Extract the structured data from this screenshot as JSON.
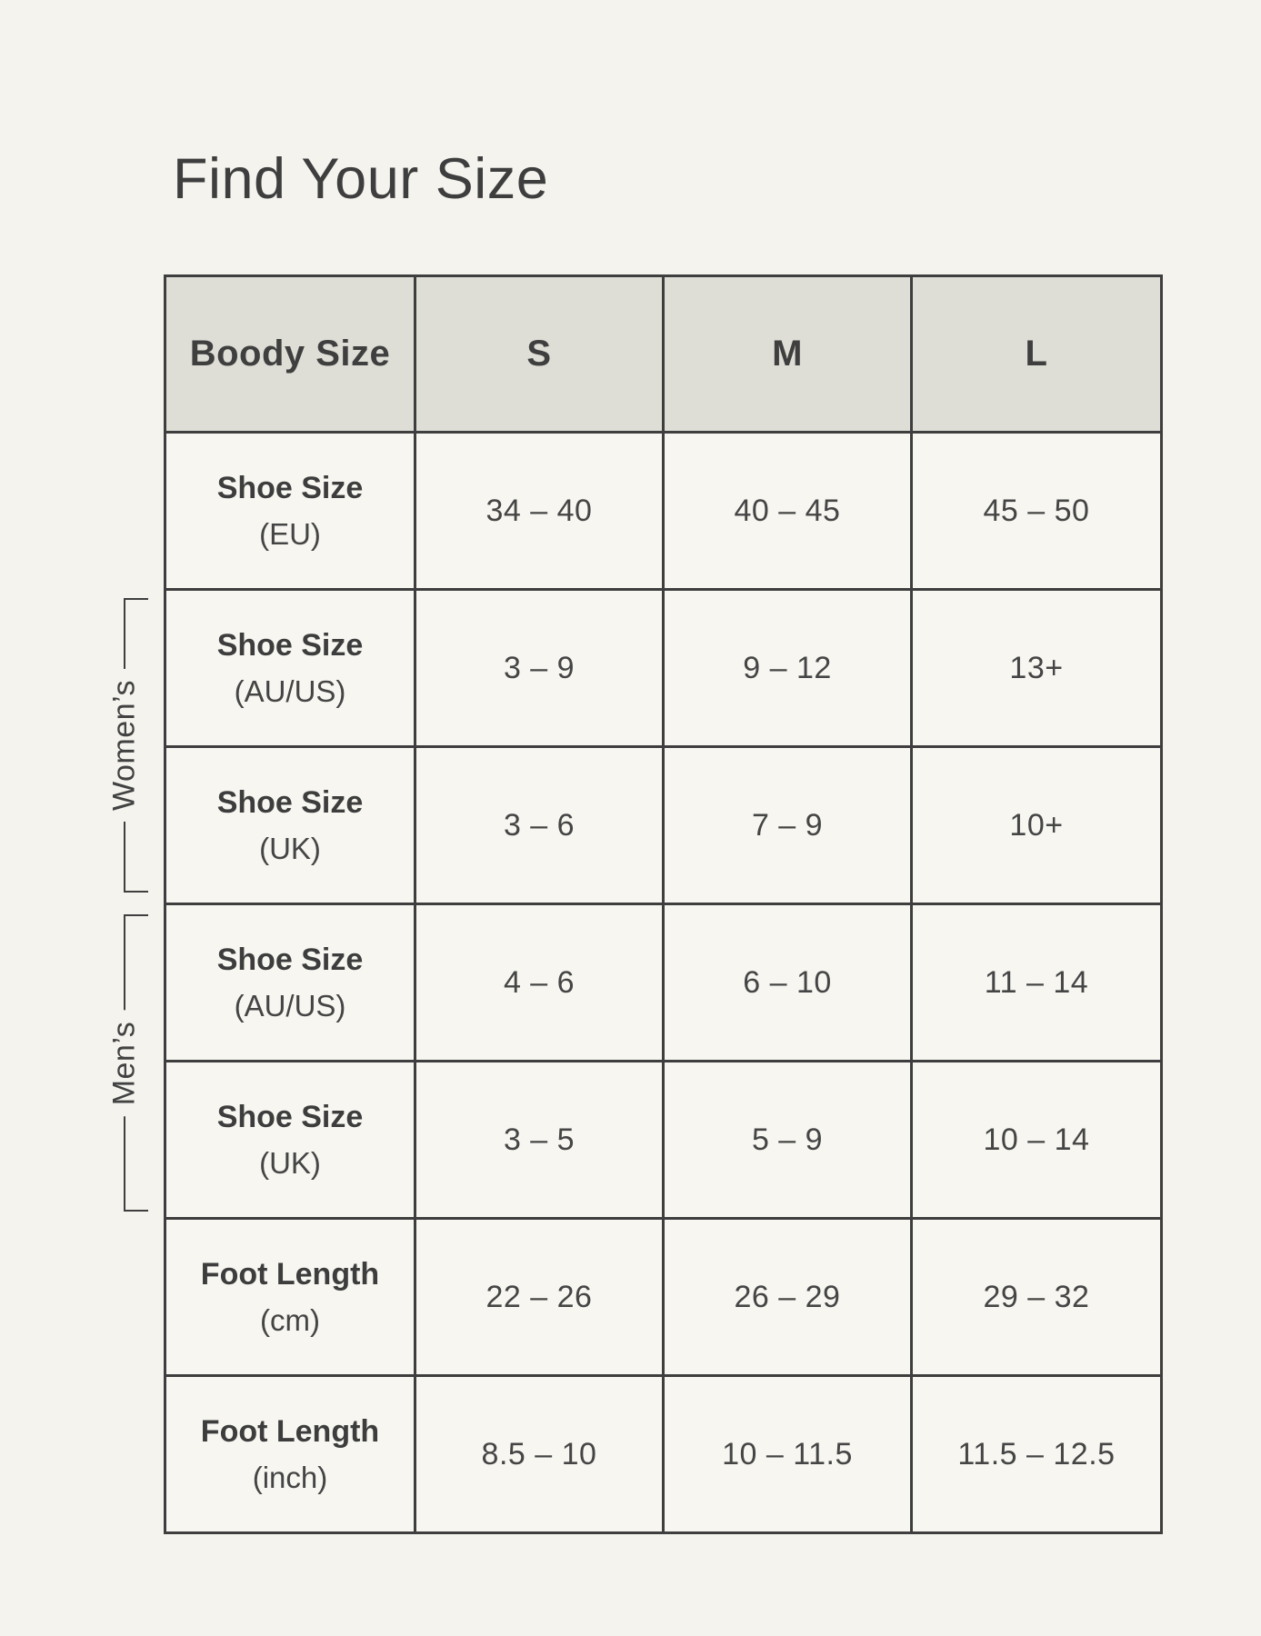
{
  "page": {
    "title": "Find Your Size"
  },
  "table": {
    "header": {
      "col1": "Boody Size",
      "sizes": [
        "S",
        "M",
        "L"
      ]
    },
    "rows": [
      {
        "label": "Shoe Size",
        "sublabel": "(EU)",
        "values": [
          "34 – 40",
          "40 – 45",
          "45 – 50"
        ]
      },
      {
        "label": "Shoe Size",
        "sublabel": "(AU/US)",
        "values": [
          "3 – 9",
          "9 – 12",
          "13+"
        ]
      },
      {
        "label": "Shoe Size",
        "sublabel": "(UK)",
        "values": [
          "3 – 6",
          "7 – 9",
          "10+"
        ]
      },
      {
        "label": "Shoe Size",
        "sublabel": "(AU/US)",
        "values": [
          "4 – 6",
          "6 – 10",
          "11 – 14"
        ]
      },
      {
        "label": "Shoe Size",
        "sublabel": "(UK)",
        "values": [
          "3 – 5",
          "5 – 9",
          "10 – 14"
        ]
      },
      {
        "label": "Foot Length",
        "sublabel": "(cm)",
        "values": [
          "22 – 26",
          "26 – 29",
          "29 – 32"
        ]
      },
      {
        "label": "Foot Length",
        "sublabel": "(inch)",
        "values": [
          "8.5 – 10",
          "10 – 11.5",
          "11.5 – 12.5"
        ]
      }
    ],
    "group_labels": {
      "womens": "Women’s",
      "mens": "Men’s"
    }
  },
  "colors": {
    "page_bg": "#F4F3EE",
    "cell_bg": "#F7F6F1",
    "header_bg": "#DEDED6",
    "border": "#3E3E3E",
    "text": "#454545"
  }
}
